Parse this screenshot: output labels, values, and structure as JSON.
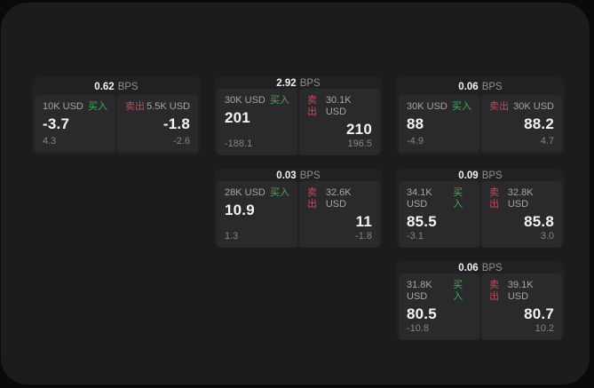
{
  "labels": {
    "bps_unit": "BPS",
    "buy": "买入",
    "sell": "卖出"
  },
  "colors": {
    "buy_accent": "#3fae5e",
    "sell_accent": "#c04b5a",
    "surface": "#1c1c1e",
    "card": "#212123",
    "pane": "#2a2a2c",
    "value_text": "#f4f4f4",
    "muted_text": "#a6a6a6"
  },
  "cards": [
    {
      "bps": "0.62",
      "buy": {
        "amount": "10K USD",
        "price": "-3.7",
        "sub": "4.3"
      },
      "sell": {
        "amount": "5.5K USD",
        "price": "-1.8",
        "sub": "-2.6"
      }
    },
    {
      "bps": "2.92",
      "buy": {
        "amount": "30K USD",
        "price": "201",
        "sub": "-188.1"
      },
      "sell": {
        "amount": "30.1K USD",
        "price": "210",
        "sub": "196.5"
      }
    },
    {
      "bps": "0.06",
      "buy": {
        "amount": "30K USD",
        "price": "88",
        "sub": "-4.9"
      },
      "sell": {
        "amount": "30K USD",
        "price": "88.2",
        "sub": "4.7"
      }
    },
    {
      "bps": "0.03",
      "buy": {
        "amount": "28K USD",
        "price": "10.9",
        "sub": "1.3"
      },
      "sell": {
        "amount": "32.6K USD",
        "price": "11",
        "sub": "-1.8"
      }
    },
    {
      "bps": "0.09",
      "buy": {
        "amount": "34.1K USD",
        "price": "85.5",
        "sub": "-3.1"
      },
      "sell": {
        "amount": "32.8K USD",
        "price": "85.8",
        "sub": "3.0"
      }
    },
    {
      "bps": "0.06",
      "buy": {
        "amount": "31.8K USD",
        "price": "80.5",
        "sub": "-10.8"
      },
      "sell": {
        "amount": "39.1K USD",
        "price": "80.7",
        "sub": "10.2"
      }
    }
  ]
}
